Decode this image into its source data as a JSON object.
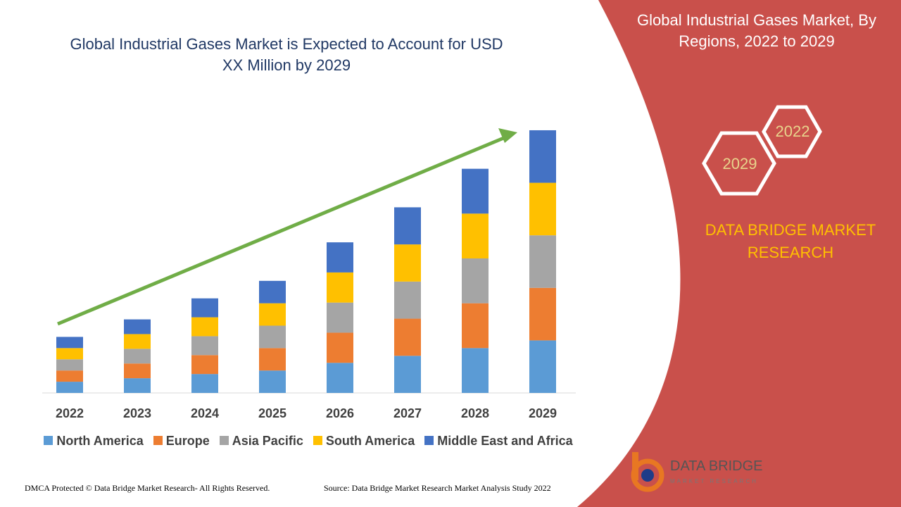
{
  "chart_data": {
    "type": "stacked-bar",
    "title": "Global Industrial Gases Market is Expected to Account for USD XX Million by 2029",
    "categories": [
      "2022",
      "2023",
      "2024",
      "2025",
      "2026",
      "2027",
      "2028",
      "2029"
    ],
    "series": [
      {
        "name": "North America",
        "color": "#5b9bd5",
        "values": [
          16,
          21,
          27,
          32,
          43,
          53,
          64,
          75
        ]
      },
      {
        "name": "Europe",
        "color": "#ed7d31",
        "values": [
          16,
          21,
          27,
          32,
          43,
          53,
          64,
          75
        ]
      },
      {
        "name": "Asia Pacific",
        "color": "#a5a5a5",
        "values": [
          16,
          21,
          27,
          32,
          43,
          53,
          64,
          75
        ]
      },
      {
        "name": "South America",
        "color": "#ffc000",
        "values": [
          16,
          21,
          27,
          32,
          43,
          53,
          64,
          75
        ]
      },
      {
        "name": "Middle East and Africa",
        "color": "#4472c4",
        "values": [
          16,
          21,
          27,
          32,
          43,
          53,
          64,
          75
        ]
      }
    ],
    "ylim": [
      0,
      380
    ]
  },
  "panel": {
    "title": "Global Industrial Gases Market, By Regions, 2022 to 2029",
    "hex_start": "2022",
    "hex_end": "2029",
    "brand": "DATA BRIDGE MARKET RESEARCH"
  },
  "logo": {
    "name": "DATA BRIDGE",
    "tagline": "MARKET RESEARCH"
  },
  "footer": {
    "copyright": "DMCA Protected © Data Bridge Market Research- All Rights Reserved.",
    "source": "Source: Data Bridge Market Research Market Analysis Study 2022"
  }
}
